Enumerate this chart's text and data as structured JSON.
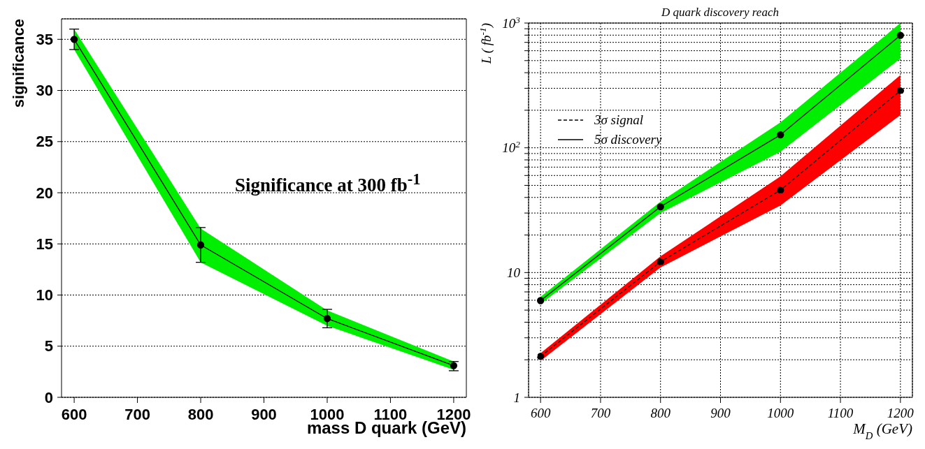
{
  "chart_data": [
    {
      "type": "line",
      "xlabel": "mass D quark (GeV)",
      "ylabel": "significance",
      "annotations": [
        "Significance at 300 fb$^{-1}$"
      ],
      "x": [
        600,
        800,
        1000,
        1200
      ],
      "xlim": [
        580,
        1220
      ],
      "xticks": [
        600,
        700,
        800,
        900,
        1000,
        1100,
        1200
      ],
      "ylim": [
        0,
        37
      ],
      "yticks": [
        0,
        5,
        10,
        15,
        20,
        25,
        30,
        35
      ],
      "grid": "y",
      "marker": "circle",
      "legend": false,
      "series": [
        {
          "color": "#000000",
          "values": [
            35,
            14.9,
            7.7,
            3.1
          ],
          "errors": [
            [
              34,
              36
            ],
            [
              13.2,
              16.6
            ],
            [
              6.8,
              8.6
            ],
            [
              2.6,
              3.5
            ]
          ],
          "lower": [
            34,
            13.2,
            7.0,
            2.7
          ],
          "upper": [
            36,
            16.5,
            8.5,
            3.5
          ]
        }
      ]
    },
    {
      "type": "line",
      "title": "D quark discovery reach",
      "xlabel": "M$_{D}$ (GeV)",
      "ylabel": "L ( fb$^{-1}$)",
      "x": [
        600,
        800,
        1000,
        1200
      ],
      "xlim": [
        580,
        1220
      ],
      "xticks": [
        600,
        700,
        800,
        900,
        1000,
        1100,
        1200
      ],
      "ylim": [
        1,
        1000
      ],
      "log": true,
      "yticks": [
        1,
        {
          "value": 2,
          "label": null
        },
        {
          "value": 3,
          "label": null
        },
        {
          "value": 4,
          "label": null
        },
        {
          "value": 5,
          "label": null
        },
        {
          "value": 6,
          "label": null
        },
        {
          "value": 7,
          "label": null
        },
        {
          "value": 8,
          "label": null
        },
        {
          "value": 9,
          "label": null
        },
        10,
        {
          "value": 20,
          "label": null
        },
        {
          "value": 30,
          "label": null
        },
        {
          "value": 40,
          "label": null
        },
        {
          "value": 50,
          "label": null
        },
        {
          "value": 60,
          "label": null
        },
        {
          "value": 70,
          "label": null
        },
        {
          "value": 80,
          "label": null
        },
        {
          "value": 90,
          "label": null
        },
        {
          "value": 100,
          "label": "10$^{2}$"
        },
        {
          "value": 200,
          "label": null
        },
        {
          "value": 300,
          "label": null
        },
        {
          "value": 400,
          "label": null
        },
        {
          "value": 500,
          "label": null
        },
        {
          "value": 600,
          "label": null
        },
        {
          "value": 700,
          "label": null
        },
        {
          "value": 800,
          "label": null
        },
        {
          "value": 900,
          "label": null
        },
        {
          "value": 1000,
          "label": "10$^{3}$"
        }
      ],
      "grid": true,
      "marker": "circle",
      "legend": "top left",
      "series": [
        {
          "name": "3σ signal",
          "color": "#000000",
          "line_style": "dashed",
          "values": [
            2.13,
            12.2,
            45.8,
            287
          ],
          "lower": [
            1.96,
            11,
            34.5,
            183
          ],
          "upper": [
            2.26,
            13.5,
            59,
            383
          ]
        },
        {
          "name": "5σ discovery",
          "color": "#000000",
          "line_style": "solid",
          "values": [
            5.96,
            33.7,
            127,
            797
          ],
          "lower": [
            5.6,
            30,
            93,
            520
          ],
          "upper": [
            6.4,
            37,
            160,
            1000
          ]
        }
      ]
    }
  ]
}
